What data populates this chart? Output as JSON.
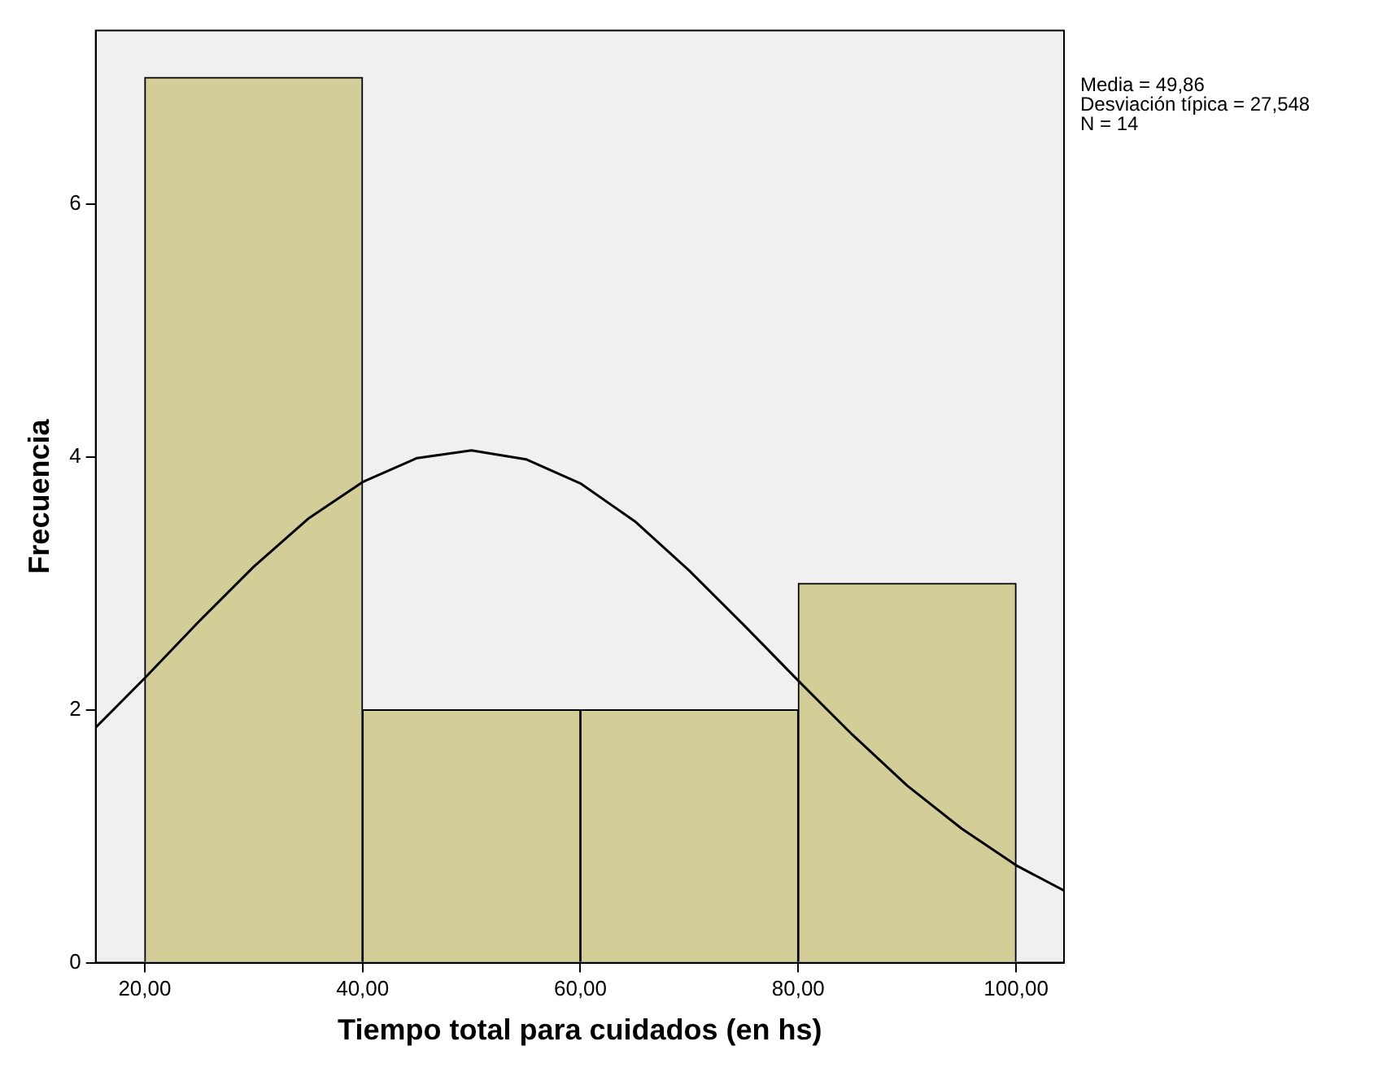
{
  "chart_data": {
    "type": "histogram",
    "xlabel": "Tiempo total para cuidados (en hs)",
    "ylabel": "Frecuencia",
    "bins": [
      20,
      40,
      60,
      80,
      100
    ],
    "values": [
      7,
      2,
      2,
      3
    ],
    "color": "#d3ce97",
    "series": [
      {
        "type": "line",
        "color": "#000000",
        "x": [
          15.5,
          20,
          25,
          30,
          35,
          40,
          45,
          50,
          55,
          60,
          65,
          70,
          75,
          80,
          85,
          90,
          95,
          100,
          104.4
        ],
        "values": [
          1.86,
          2.25,
          2.7,
          3.13,
          3.51,
          3.8,
          3.99,
          4.05,
          3.98,
          3.79,
          3.49,
          3.1,
          2.67,
          2.23,
          1.8,
          1.4,
          1.06,
          0.77,
          0.57
        ]
      }
    ],
    "xlim": [
      15.5,
      104.4
    ],
    "ylim": [
      0,
      7.37
    ],
    "xticks": [
      {
        "value": 20,
        "label": "20,00"
      },
      {
        "value": 40,
        "label": "40,00"
      },
      {
        "value": 60,
        "label": "60,00"
      },
      {
        "value": 80,
        "label": "80,00"
      },
      {
        "value": 100,
        "label": "100,00"
      }
    ],
    "yticks": [
      0,
      2,
      4,
      6
    ],
    "grid": false,
    "legend": false,
    "marker": "none",
    "annotations": [
      "Media = 49,86",
      "Desviación típica = 27,548",
      "N = 14"
    ]
  }
}
